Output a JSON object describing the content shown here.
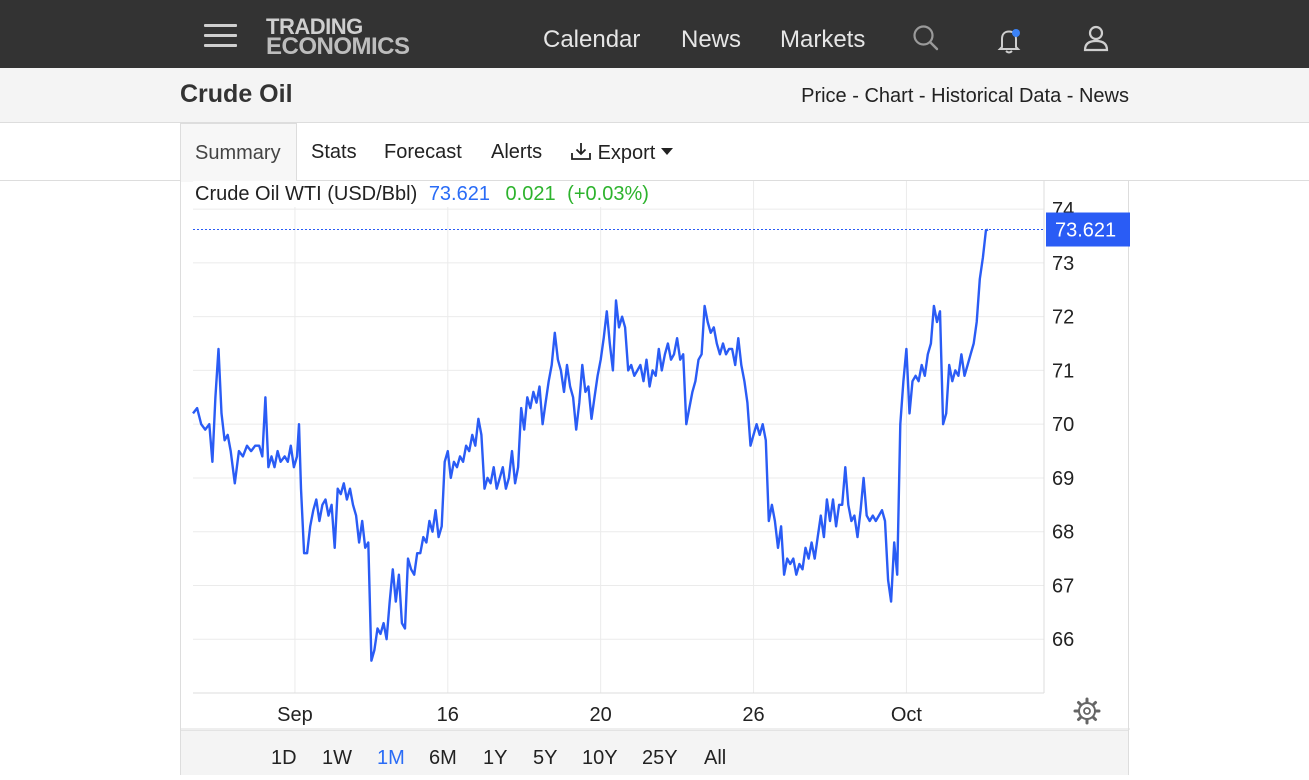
{
  "header": {
    "logo_line1": "TRADING",
    "logo_line2": "ECONOMICS",
    "nav": [
      {
        "label": "Calendar"
      },
      {
        "label": "News"
      },
      {
        "label": "Markets"
      }
    ],
    "icons": [
      "menu-icon",
      "search-icon",
      "bell-icon",
      "user-icon"
    ],
    "bell_dot_color": "#3b82f6"
  },
  "page": {
    "title": "Crude Oil",
    "crumbs": [
      "Price",
      "Chart",
      "Historical Data",
      "News"
    ],
    "crumb_sep": " - "
  },
  "tabs": [
    {
      "label": "Summary",
      "active": true
    },
    {
      "label": "Stats"
    },
    {
      "label": "Forecast"
    },
    {
      "label": "Alerts"
    },
    {
      "label": "Export",
      "icon": "download-icon"
    }
  ],
  "quote": {
    "name": "Crude Oil WTI (USD/Bbl)",
    "price": "73.621",
    "change": "0.021",
    "change_pct": "(+0.03%)",
    "price_color": "#2a6cf6",
    "change_color": "#2db32d"
  },
  "chart_data": {
    "type": "line",
    "ylim": [
      65,
      74.3
    ],
    "yticks": [
      74,
      73,
      72,
      71,
      70,
      69,
      68,
      67,
      66
    ],
    "xticks": [
      {
        "label": "Sep",
        "x": 10
      },
      {
        "label": "16",
        "x": 25
      },
      {
        "label": "20",
        "x": 40
      },
      {
        "label": "26",
        "x": 55
      },
      {
        "label": "Oct",
        "x": 70
      }
    ],
    "xlim": [
      0,
      83.5
    ],
    "last_value": 73.621,
    "last_label": "73.621",
    "line_color": "#2a5cf5",
    "series": [
      {
        "values": [
          [
            0.0,
            70.2
          ],
          [
            0.4,
            70.3
          ],
          [
            0.8,
            70.0
          ],
          [
            1.2,
            69.9
          ],
          [
            1.6,
            70.0
          ],
          [
            1.9,
            69.3
          ],
          [
            2.2,
            70.5
          ],
          [
            2.5,
            71.4
          ],
          [
            2.8,
            70.2
          ],
          [
            3.1,
            69.7
          ],
          [
            3.4,
            69.8
          ],
          [
            3.7,
            69.5
          ],
          [
            4.1,
            68.9
          ],
          [
            4.5,
            69.5
          ],
          [
            4.9,
            69.4
          ],
          [
            5.3,
            69.6
          ],
          [
            5.7,
            69.5
          ],
          [
            6.1,
            69.6
          ],
          [
            6.5,
            69.6
          ],
          [
            6.8,
            69.4
          ],
          [
            7.1,
            70.5
          ],
          [
            7.4,
            69.2
          ],
          [
            7.7,
            69.4
          ],
          [
            8.0,
            69.2
          ],
          [
            8.3,
            69.5
          ],
          [
            8.6,
            69.3
          ],
          [
            9.0,
            69.4
          ],
          [
            9.3,
            69.3
          ],
          [
            9.6,
            69.6
          ],
          [
            9.9,
            69.2
          ],
          [
            10.2,
            69.4
          ],
          [
            10.4,
            70.0
          ],
          [
            10.6,
            68.8
          ],
          [
            10.9,
            67.6
          ],
          [
            11.2,
            67.6
          ],
          [
            11.5,
            68.1
          ],
          [
            11.8,
            68.4
          ],
          [
            12.1,
            68.6
          ],
          [
            12.4,
            68.2
          ],
          [
            12.7,
            68.5
          ],
          [
            13.0,
            68.6
          ],
          [
            13.3,
            68.3
          ],
          [
            13.6,
            68.5
          ],
          [
            13.9,
            67.7
          ],
          [
            14.2,
            68.8
          ],
          [
            14.5,
            68.7
          ],
          [
            14.8,
            68.9
          ],
          [
            15.1,
            68.6
          ],
          [
            15.4,
            68.8
          ],
          [
            15.7,
            68.5
          ],
          [
            16.0,
            68.3
          ],
          [
            16.3,
            67.8
          ],
          [
            16.6,
            68.2
          ],
          [
            16.9,
            67.7
          ],
          [
            17.2,
            67.8
          ],
          [
            17.5,
            65.6
          ],
          [
            17.8,
            65.8
          ],
          [
            18.1,
            66.2
          ],
          [
            18.4,
            66.1
          ],
          [
            18.7,
            66.3
          ],
          [
            19.0,
            66.0
          ],
          [
            19.3,
            66.7
          ],
          [
            19.6,
            67.3
          ],
          [
            19.9,
            66.7
          ],
          [
            20.2,
            67.2
          ],
          [
            20.5,
            66.3
          ],
          [
            20.8,
            66.2
          ],
          [
            21.1,
            67.5
          ],
          [
            21.4,
            67.3
          ],
          [
            21.7,
            67.2
          ],
          [
            22.0,
            67.6
          ],
          [
            22.3,
            67.6
          ],
          [
            22.6,
            67.9
          ],
          [
            22.9,
            67.8
          ],
          [
            23.2,
            68.2
          ],
          [
            23.5,
            68.0
          ],
          [
            23.8,
            68.4
          ],
          [
            24.1,
            67.9
          ],
          [
            24.4,
            68.1
          ],
          [
            24.7,
            69.3
          ],
          [
            25.0,
            69.5
          ],
          [
            25.3,
            69.0
          ],
          [
            25.6,
            69.3
          ],
          [
            25.9,
            69.2
          ],
          [
            26.2,
            69.4
          ],
          [
            26.5,
            69.3
          ],
          [
            26.8,
            69.6
          ],
          [
            27.1,
            69.5
          ],
          [
            27.4,
            69.8
          ],
          [
            27.7,
            69.6
          ],
          [
            28.0,
            70.1
          ],
          [
            28.3,
            69.8
          ],
          [
            28.6,
            68.8
          ],
          [
            28.9,
            69.0
          ],
          [
            29.2,
            68.9
          ],
          [
            29.5,
            69.2
          ],
          [
            29.8,
            68.8
          ],
          [
            30.1,
            69.0
          ],
          [
            30.4,
            69.2
          ],
          [
            30.7,
            68.8
          ],
          [
            31.0,
            69.0
          ],
          [
            31.3,
            69.5
          ],
          [
            31.6,
            68.9
          ],
          [
            31.9,
            69.2
          ],
          [
            32.2,
            70.3
          ],
          [
            32.5,
            69.9
          ],
          [
            32.8,
            70.5
          ],
          [
            33.1,
            70.3
          ],
          [
            33.4,
            70.6
          ],
          [
            33.7,
            70.4
          ],
          [
            34.0,
            70.7
          ],
          [
            34.3,
            70.0
          ],
          [
            34.6,
            70.4
          ],
          [
            34.9,
            70.8
          ],
          [
            35.2,
            71.1
          ],
          [
            35.5,
            71.7
          ],
          [
            35.8,
            71.2
          ],
          [
            36.1,
            71.0
          ],
          [
            36.4,
            70.6
          ],
          [
            36.7,
            71.1
          ],
          [
            37.0,
            70.7
          ],
          [
            37.3,
            70.5
          ],
          [
            37.6,
            69.9
          ],
          [
            37.9,
            70.4
          ],
          [
            38.2,
            71.1
          ],
          [
            38.5,
            70.6
          ],
          [
            38.8,
            70.7
          ],
          [
            39.1,
            70.1
          ],
          [
            39.4,
            70.5
          ],
          [
            39.7,
            70.9
          ],
          [
            40.0,
            71.2
          ],
          [
            40.3,
            71.6
          ],
          [
            40.6,
            72.1
          ],
          [
            40.9,
            71.5
          ],
          [
            41.2,
            71.0
          ],
          [
            41.5,
            72.3
          ],
          [
            41.8,
            71.8
          ],
          [
            42.1,
            72.0
          ],
          [
            42.4,
            71.8
          ],
          [
            42.7,
            71.0
          ],
          [
            43.0,
            71.1
          ],
          [
            43.3,
            70.9
          ],
          [
            43.6,
            71.0
          ],
          [
            43.9,
            71.1
          ],
          [
            44.2,
            70.8
          ],
          [
            44.5,
            71.2
          ],
          [
            44.8,
            70.7
          ],
          [
            45.1,
            71.0
          ],
          [
            45.4,
            70.9
          ],
          [
            45.7,
            71.4
          ],
          [
            46.0,
            71.0
          ],
          [
            46.3,
            71.3
          ],
          [
            46.6,
            71.5
          ],
          [
            46.9,
            71.2
          ],
          [
            47.2,
            71.3
          ],
          [
            47.5,
            71.6
          ],
          [
            47.8,
            71.2
          ],
          [
            48.1,
            71.3
          ],
          [
            48.4,
            70.0
          ],
          [
            48.7,
            70.3
          ],
          [
            49.0,
            70.6
          ],
          [
            49.3,
            70.8
          ],
          [
            49.6,
            71.2
          ],
          [
            49.9,
            71.3
          ],
          [
            50.2,
            72.2
          ],
          [
            50.5,
            71.9
          ],
          [
            50.8,
            71.7
          ],
          [
            51.1,
            71.8
          ],
          [
            51.4,
            71.5
          ],
          [
            51.7,
            71.3
          ],
          [
            52.0,
            71.5
          ],
          [
            52.3,
            71.3
          ],
          [
            52.6,
            71.4
          ],
          [
            52.9,
            71.4
          ],
          [
            53.2,
            71.1
          ],
          [
            53.5,
            71.6
          ],
          [
            53.8,
            71.1
          ],
          [
            54.1,
            70.8
          ],
          [
            54.4,
            70.4
          ],
          [
            54.7,
            69.6
          ],
          [
            55.0,
            69.8
          ],
          [
            55.3,
            70.0
          ],
          [
            55.6,
            69.8
          ],
          [
            55.9,
            70.0
          ],
          [
            56.2,
            69.7
          ],
          [
            56.5,
            68.2
          ],
          [
            56.8,
            68.5
          ],
          [
            57.1,
            68.2
          ],
          [
            57.4,
            67.7
          ],
          [
            57.7,
            68.1
          ],
          [
            58.0,
            67.2
          ],
          [
            58.3,
            67.5
          ],
          [
            58.6,
            67.4
          ],
          [
            58.9,
            67.5
          ],
          [
            59.2,
            67.2
          ],
          [
            59.5,
            67.4
          ],
          [
            59.8,
            67.3
          ],
          [
            60.1,
            67.7
          ],
          [
            60.4,
            67.5
          ],
          [
            60.7,
            67.8
          ],
          [
            61.0,
            67.5
          ],
          [
            61.3,
            67.9
          ],
          [
            61.6,
            68.3
          ],
          [
            61.9,
            67.9
          ],
          [
            62.2,
            68.6
          ],
          [
            62.5,
            68.2
          ],
          [
            62.8,
            68.6
          ],
          [
            63.1,
            68.1
          ],
          [
            63.4,
            68.5
          ],
          [
            63.7,
            68.5
          ],
          [
            64.0,
            69.2
          ],
          [
            64.3,
            68.5
          ],
          [
            64.6,
            68.2
          ],
          [
            64.9,
            68.3
          ],
          [
            65.2,
            67.9
          ],
          [
            65.5,
            68.4
          ],
          [
            65.8,
            69.0
          ],
          [
            66.1,
            68.3
          ],
          [
            66.4,
            68.2
          ],
          [
            66.7,
            68.3
          ],
          [
            67.0,
            68.2
          ],
          [
            67.3,
            68.3
          ],
          [
            67.6,
            68.4
          ],
          [
            67.9,
            68.2
          ],
          [
            68.2,
            67.1
          ],
          [
            68.5,
            66.7
          ],
          [
            68.8,
            67.8
          ],
          [
            69.1,
            67.2
          ],
          [
            69.4,
            70.0
          ],
          [
            69.7,
            70.8
          ],
          [
            70.0,
            71.4
          ],
          [
            70.3,
            70.2
          ],
          [
            70.6,
            70.8
          ],
          [
            70.9,
            70.9
          ],
          [
            71.2,
            70.8
          ],
          [
            71.5,
            71.1
          ],
          [
            71.8,
            70.9
          ],
          [
            72.1,
            71.3
          ],
          [
            72.4,
            71.5
          ],
          [
            72.7,
            72.2
          ],
          [
            73.0,
            71.9
          ],
          [
            73.3,
            72.1
          ],
          [
            73.6,
            70.0
          ],
          [
            73.9,
            70.2
          ],
          [
            74.2,
            71.1
          ],
          [
            74.5,
            70.8
          ],
          [
            74.8,
            71.0
          ],
          [
            75.1,
            70.9
          ],
          [
            75.4,
            71.3
          ],
          [
            75.7,
            70.9
          ],
          [
            76.0,
            71.1
          ],
          [
            76.3,
            71.3
          ],
          [
            76.6,
            71.5
          ],
          [
            76.9,
            71.9
          ],
          [
            77.2,
            72.7
          ],
          [
            77.5,
            73.1
          ],
          [
            77.8,
            73.6
          ],
          [
            78.0,
            73.621
          ]
        ]
      }
    ]
  },
  "settings_icon": "gear-icon",
  "ranges": [
    {
      "label": "1D"
    },
    {
      "label": "1W"
    },
    {
      "label": "1M",
      "active": true
    },
    {
      "label": "6M"
    },
    {
      "label": "1Y"
    },
    {
      "label": "5Y"
    },
    {
      "label": "10Y"
    },
    {
      "label": "25Y"
    },
    {
      "label": "All"
    }
  ]
}
